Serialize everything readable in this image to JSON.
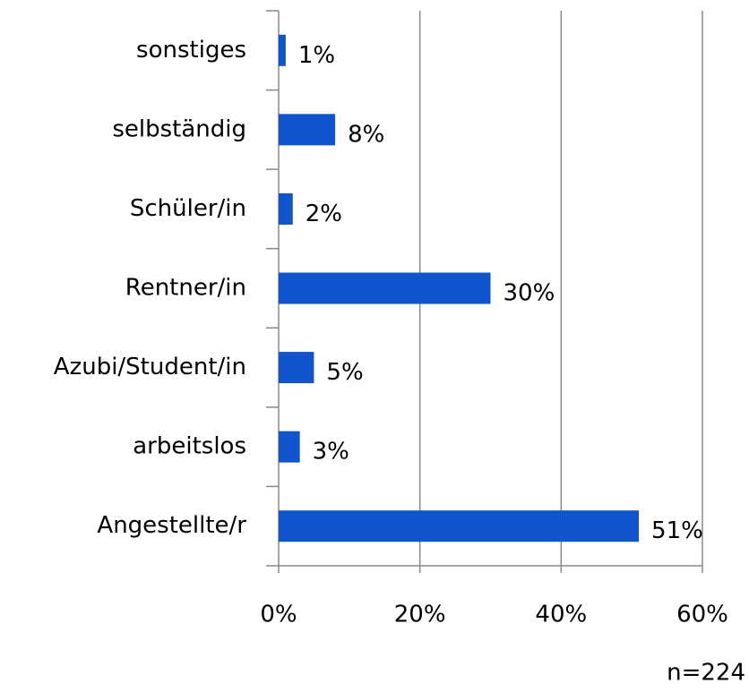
{
  "chart_data": {
    "type": "bar",
    "orientation": "horizontal",
    "categories": [
      "sonstiges",
      "selbständig",
      "Schüler/in",
      "Rentner/in",
      "Azubi/Student/in",
      "arbeitslos",
      "Angestellte/r"
    ],
    "values": [
      1,
      8,
      2,
      30,
      5,
      3,
      51
    ],
    "value_labels": [
      "1%",
      "8%",
      "2%",
      "30%",
      "5%",
      "3%",
      "51%"
    ],
    "color": "#1155cc",
    "xlim": [
      0,
      60
    ],
    "xticks": [
      {
        "value": 0,
        "label": "0%"
      },
      {
        "value": 20,
        "label": "20%"
      },
      {
        "value": 40,
        "label": "40%"
      },
      {
        "value": 60,
        "label": "60%"
      }
    ],
    "grid": true,
    "annotation": "n=224"
  }
}
